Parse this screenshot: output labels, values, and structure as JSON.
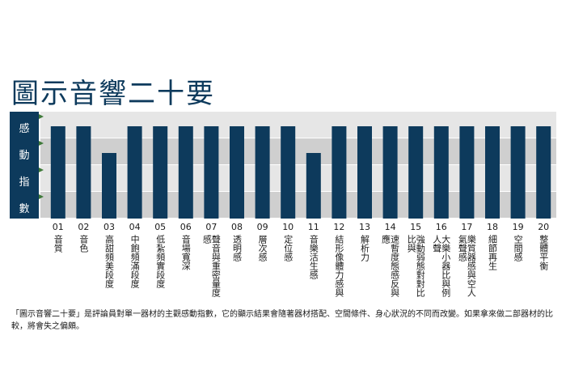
{
  "title": "圖示音響二十要",
  "caption": "「圖示音響二十要」是評論員對單一器材的主觀感動指數，它的顯示結果會隨著器材搭配、空間條件、身心狀況的不同而改變。如果拿來做二部器材的比較，將會失之偏頗。",
  "colors": {
    "bar": "#0d3a5c",
    "band_light": "#e6e6e6",
    "band_dark": "#cfcfcf",
    "marker": "#3f7a3a"
  },
  "chart_data": {
    "type": "bar",
    "title": "圖示音響二十要",
    "ylabel": [
      "感",
      "動",
      "指",
      "數"
    ],
    "categories": [
      "01",
      "02",
      "03",
      "04",
      "05",
      "06",
      "07",
      "08",
      "09",
      "10",
      "11",
      "12",
      "13",
      "14",
      "15",
      "16",
      "17",
      "18",
      "19",
      "20"
    ],
    "category_names": [
      "音質",
      "音色",
      "高甜頻美段度",
      "中飽頻滿段度",
      "低紮頻實段度",
      "音場寬深",
      "聲音與重密量度感",
      "透明感",
      "層次感",
      "定位感",
      "音樂活生感",
      "結形像體力感與",
      "解析力",
      "速暫度態感反與應",
      "強動弱態對對比比與",
      "大樂小器比與例人聲",
      "樂質器感與空人氣聲感",
      "細節再生",
      "空間感",
      "整體平衡"
    ],
    "values": [
      4,
      4,
      3,
      4,
      4,
      4,
      4,
      4,
      4,
      4,
      3,
      4,
      4,
      4,
      4,
      4,
      4,
      4,
      4,
      4
    ],
    "ylim": [
      0,
      4
    ],
    "grid": true,
    "legend": "none"
  }
}
